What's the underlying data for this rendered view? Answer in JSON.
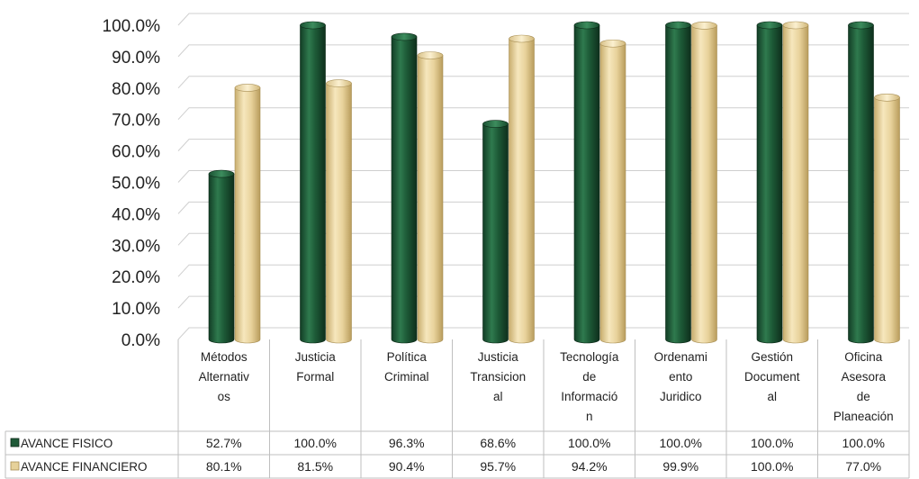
{
  "chart_data": {
    "type": "bar",
    "categories": [
      [
        "Métodos",
        "Alternativ",
        "os"
      ],
      [
        "Justicia",
        "Formal"
      ],
      [
        "Política",
        "Criminal"
      ],
      [
        "Justicia",
        "Transicion",
        "al"
      ],
      [
        "Tecnología",
        "de",
        "Informació",
        "n"
      ],
      [
        "Ordenami",
        "ento",
        "Juridico"
      ],
      [
        "Gestión",
        "Document",
        "al"
      ],
      [
        "Oficina",
        "Asesora",
        "de",
        "Planeación"
      ]
    ],
    "series": [
      {
        "name": "AVANCE FISICO",
        "color": "#1f5a38",
        "values": [
          52.7,
          100.0,
          96.3,
          68.6,
          100.0,
          100.0,
          100.0,
          100.0
        ],
        "labels": [
          "52.7%",
          "100.0%",
          "96.3%",
          "68.6%",
          "100.0%",
          "100.0%",
          "100.0%",
          "100.0%"
        ]
      },
      {
        "name": "AVANCE FINANCIERO",
        "color": "#e6d19a",
        "values": [
          80.1,
          81.5,
          90.4,
          95.7,
          94.2,
          99.9,
          100.0,
          77.0
        ],
        "labels": [
          "80.1%",
          "81.5%",
          "90.4%",
          "95.7%",
          "94.2%",
          "99.9%",
          "100.0%",
          "77.0%"
        ]
      }
    ],
    "yticks": [
      "0.0%",
      "10.0%",
      "20.0%",
      "30.0%",
      "40.0%",
      "50.0%",
      "60.0%",
      "70.0%",
      "80.0%",
      "90.0%",
      "100.0%"
    ],
    "ylim": [
      0,
      100
    ],
    "grid": true,
    "data_table": true
  }
}
